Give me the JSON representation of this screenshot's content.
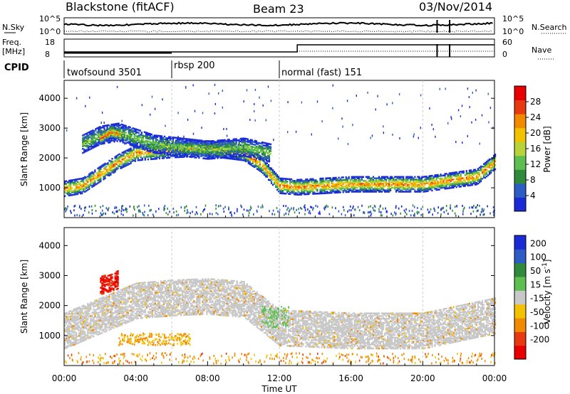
{
  "header": {
    "station": "Blackstone (fitACF)",
    "beam": "Beam 23",
    "date": "03/Nov/2014"
  },
  "noise_panel": {
    "left_label": "N.Sky",
    "right_label": "N.Search",
    "left_ticks": [
      "10^5",
      "10^0"
    ],
    "right_ticks": [
      "10^5",
      "10^0"
    ]
  },
  "freq_panel": {
    "left_label_1": "Freq.",
    "left_label_2": "[MHz]",
    "left_ticks": [
      "18",
      "8"
    ],
    "right_label": "Nave",
    "right_ticks": [
      "60",
      "0"
    ]
  },
  "cpid": {
    "label": "CPID",
    "segments": [
      {
        "name": "twofsound 3501",
        "start_h": 0.0,
        "end_h": 6.0
      },
      {
        "name": "rbsp 200",
        "start_h": 6.0,
        "end_h": 12.0
      },
      {
        "name": "normal (fast) 151",
        "start_h": 12.0,
        "end_h": 24.0
      }
    ]
  },
  "colors": {
    "power": [
      "#1a2bd6",
      "#2c5cc4",
      "#2f8a3c",
      "#5cbf4f",
      "#b8d23a",
      "#f2c200",
      "#f28a00",
      "#e83a10",
      "#e80000"
    ],
    "velocity": [
      "#1a2bd6",
      "#2c5cc4",
      "#2f8a3c",
      "#5cbf4f",
      "#c8c8c8",
      "#f2c200",
      "#f28a00",
      "#e83a10",
      "#e80000"
    ],
    "gridline": "#c8c8c8"
  },
  "chart_data": [
    {
      "type": "heatmap",
      "title": "Power",
      "xlabel": "Time UT",
      "ylabel": "Slant Range [km]",
      "xlim": [
        0,
        24
      ],
      "ylim": [
        0,
        4600
      ],
      "x_ticks": [
        "00:00",
        "04:00",
        "08:00",
        "12:00",
        "16:00",
        "20:00",
        "00:00"
      ],
      "y_ticks": [
        "1000",
        "2000",
        "3000",
        "4000"
      ],
      "colorbar_label": "Power [dB]",
      "colorbar_ticks": [
        "4",
        "8",
        "12",
        "16",
        "20",
        "24",
        "28"
      ],
      "colorbar_range": [
        0,
        32
      ],
      "bands": [
        {
          "desc": "main echo band",
          "points": [
            [
              0,
              1000
            ],
            [
              1,
              1100
            ],
            [
              2,
              1500
            ],
            [
              3,
              1900
            ],
            [
              4,
              2200
            ],
            [
              6,
              2300
            ],
            [
              8,
              2350
            ],
            [
              10,
              2200
            ],
            [
              11,
              1800
            ],
            [
              12,
              1100
            ],
            [
              13,
              1050
            ],
            [
              16,
              1150
            ],
            [
              20,
              1150
            ],
            [
              23,
              1400
            ],
            [
              24,
              1900
            ]
          ],
          "width_km": 250,
          "peak_db": 25
        },
        {
          "desc": "upper band",
          "points": [
            [
              1,
              2500
            ],
            [
              2,
              2800
            ],
            [
              3,
              2900
            ],
            [
              5,
              2500
            ],
            [
              8,
              2300
            ],
            [
              10,
              2400
            ],
            [
              11.5,
              2200
            ]
          ],
          "width_km": 300,
          "peak_db": 14
        },
        {
          "desc": "early loop",
          "points": [
            [
              2,
              2700
            ],
            [
              2.6,
              2900
            ],
            [
              3.2,
              2800
            ]
          ],
          "width_km": 200,
          "peak_db": 28
        }
      ]
    },
    {
      "type": "heatmap",
      "title": "Velocity",
      "xlabel": "Time UT",
      "ylabel": "Slant Range [km]",
      "xlim": [
        0,
        24
      ],
      "ylim": [
        0,
        4600
      ],
      "x_ticks": [
        "00:00",
        "04:00",
        "08:00",
        "12:00",
        "16:00",
        "20:00",
        "00:00"
      ],
      "y_ticks": [
        "1000",
        "2000",
        "3000",
        "4000"
      ],
      "colorbar_label": "Velocity [m s-1]",
      "colorbar_ticks": [
        "200",
        "100",
        "50",
        "15",
        "-15",
        "-50",
        "-100",
        "-200"
      ],
      "colorbar_range": [
        -250,
        250
      ],
      "bands": [
        {
          "desc": "ground scatter",
          "points": [
            [
              0,
              1200
            ],
            [
              2,
              1700
            ],
            [
              4,
              2200
            ],
            [
              6,
              2300
            ],
            [
              8,
              2350
            ],
            [
              10,
              2250
            ],
            [
              12,
              1300
            ],
            [
              16,
              1200
            ],
            [
              20,
              1200
            ],
            [
              24,
              1700
            ]
          ],
          "width_km": 600,
          "velocity": 0
        },
        {
          "desc": "early ionospheric",
          "points": [
            [
              2,
              2700
            ],
            [
              3,
              2900
            ]
          ],
          "width_km": 300,
          "velocity": -200
        }
      ]
    }
  ]
}
